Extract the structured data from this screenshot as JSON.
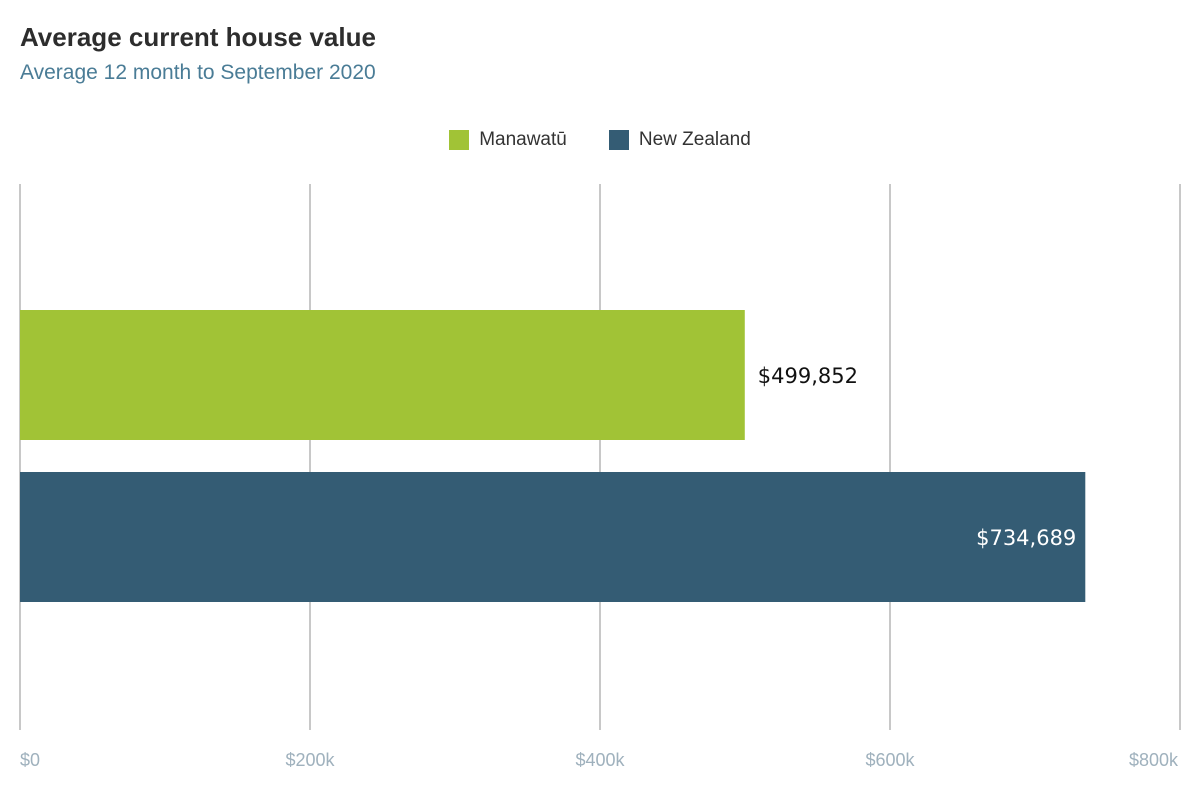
{
  "chart_data": {
    "type": "bar",
    "orientation": "horizontal",
    "title": "Average current house value",
    "subtitle": "Average 12 month to September 2020",
    "series": [
      {
        "name": "Manawatū",
        "value": 499852,
        "label": "$499,852",
        "color": "#a1c336",
        "label_color": "#111111",
        "label_position": "outside"
      },
      {
        "name": "New Zealand",
        "value": 734689,
        "label": "$734,689",
        "color": "#345c74",
        "label_color": "#ffffff",
        "label_position": "inside"
      }
    ],
    "x_ticks": [
      {
        "value": 0,
        "label": "$0"
      },
      {
        "value": 200000,
        "label": "$200k"
      },
      {
        "value": 400000,
        "label": "$400k"
      },
      {
        "value": 600000,
        "label": "$600k"
      },
      {
        "value": 800000,
        "label": "$800k"
      }
    ],
    "xlim": [
      0,
      800000
    ],
    "grid": true,
    "legend_position": "top-center"
  }
}
